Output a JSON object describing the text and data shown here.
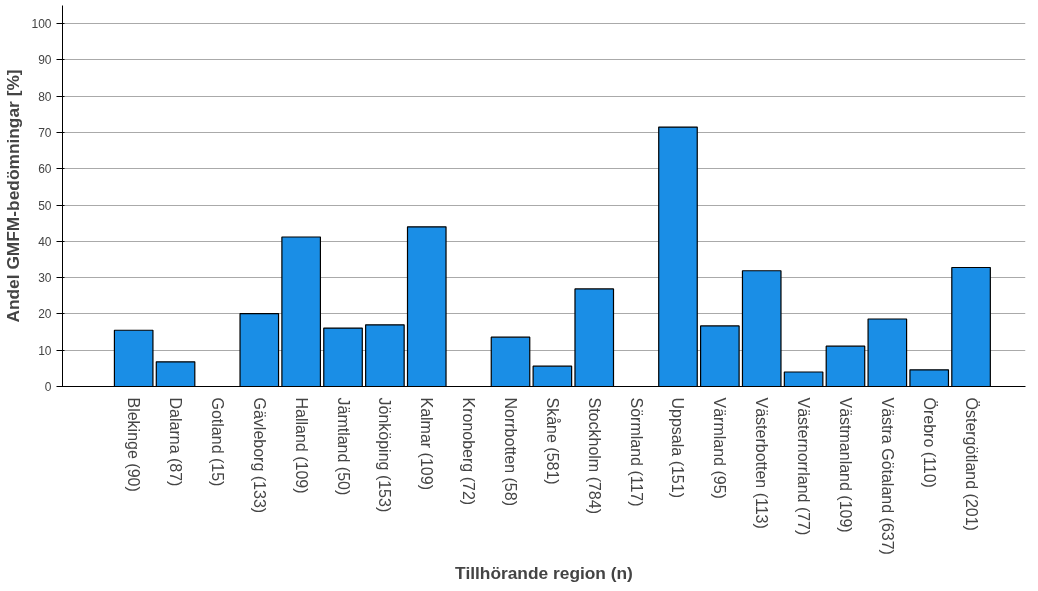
{
  "chart_data": {
    "type": "bar",
    "xlabel": "Tillhörande region (n)",
    "ylabel": "Andel GMFM-bedömningar [%]",
    "categories": [
      "Blekinge (90)",
      "Dalarna (87)",
      "Gotland (15)",
      "Gävleborg (133)",
      "Halland (109)",
      "Jämtland (50)",
      "Jönköping (153)",
      "Kalmar (109)",
      "Kronoberg (72)",
      "Norrbotten (58)",
      "Skåne (581)",
      "Stockholm (784)",
      "Sörmland (117)",
      "Uppsala (151)",
      "Värmland (95)",
      "Västerbotten (113)",
      "Västernorrland (77)",
      "Västmanland (109)",
      "Västra Götaland (637)",
      "Örebro (110)",
      "Östergötland (201)"
    ],
    "values": [
      15.5,
      6.8,
      0,
      20.1,
      41.2,
      16.1,
      17.0,
      44.0,
      0,
      13.6,
      5.6,
      26.9,
      0,
      71.5,
      16.7,
      31.9,
      4.0,
      11.1,
      18.6,
      4.6,
      32.8
    ],
    "color": "#1a8ee6",
    "ylim": [
      0,
      105
    ],
    "yticks": [
      0,
      10,
      20,
      30,
      40,
      50,
      60,
      70,
      80,
      90,
      100
    ],
    "grid": "y"
  }
}
